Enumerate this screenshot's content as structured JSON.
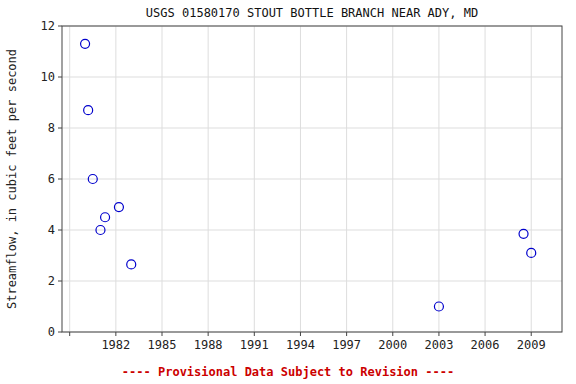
{
  "chart_data": {
    "type": "scatter",
    "title": "USGS 01580170 STOUT BOTTLE BRANCH NEAR ADY, MD",
    "ylabel": "Streamflow, in cubic feet per second",
    "x": [
      1980.0,
      1980.2,
      1980.5,
      1981.0,
      1981.3,
      1982.2,
      1983.0,
      2003.0,
      2008.5,
      2009.0
    ],
    "values": [
      11.3,
      8.7,
      6.0,
      4.0,
      4.5,
      4.9,
      2.65,
      1.0,
      3.85,
      3.1
    ],
    "xlim": [
      1978.5,
      2011.0
    ],
    "ylim": [
      0,
      12
    ],
    "xticks": [
      {
        "value": 1979,
        "label": null
      },
      1982,
      1985,
      1988,
      1991,
      1994,
      1997,
      2000,
      2003,
      2006,
      2009
    ],
    "yticks": [
      0,
      2,
      4,
      6,
      8,
      10,
      12
    ],
    "color": "#0000cc",
    "marker": "circle-open",
    "grid": true,
    "annotations": [
      {
        "text": "---- Provisional Data Subject to Revision ----",
        "color": "#cc0000"
      }
    ]
  }
}
